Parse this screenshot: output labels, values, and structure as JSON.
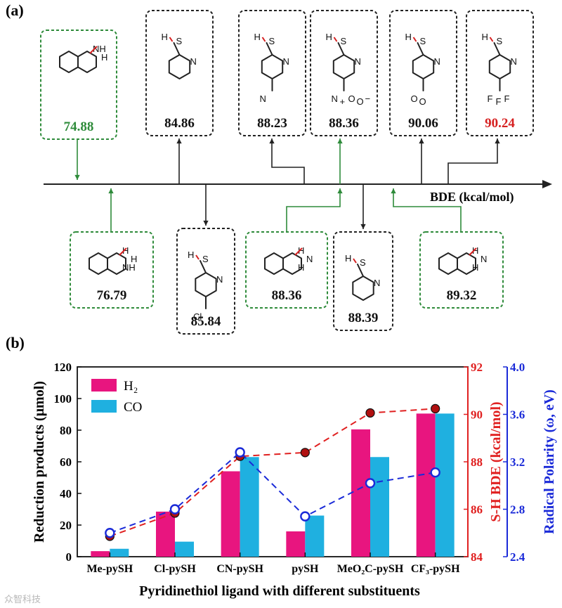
{
  "panel_a": {
    "label": "(a)",
    "axis_label": "BDE  (kcal/mol)",
    "top_boxes": [
      {
        "name": "thiq-c1",
        "value": "74.88",
        "atoms": [
          "NH",
          "H"
        ],
        "color": "#2e8b3a",
        "value_color": "#2e8b3a"
      },
      {
        "name": "me-pysh",
        "value": "84.86",
        "atoms": [
          "H",
          "S",
          "N"
        ],
        "color": "#222222",
        "value_color": "#111111"
      },
      {
        "name": "cn-pysh",
        "value": "88.23",
        "atoms": [
          "H",
          "S",
          "N",
          "N"
        ],
        "color": "#222222",
        "value_color": "#111111"
      },
      {
        "name": "no2-pysh",
        "value": "88.36",
        "atoms": [
          "H",
          "S",
          "N",
          "N",
          "+",
          "O",
          "O",
          "−"
        ],
        "color": "#222222",
        "value_color": "#111111"
      },
      {
        "name": "meo2c-pysh",
        "value": "90.06",
        "atoms": [
          "H",
          "S",
          "N",
          "O",
          "O"
        ],
        "color": "#222222",
        "value_color": "#111111"
      },
      {
        "name": "cf3-pysh",
        "value": "90.24",
        "atoms": [
          "H",
          "S",
          "N",
          "F",
          "F",
          "F"
        ],
        "color": "#222222",
        "value_color": "#d62020"
      }
    ],
    "bottom_boxes": [
      {
        "name": "thiq-c1h2",
        "value": "76.79",
        "atoms": [
          "H",
          "H",
          "NH"
        ],
        "color": "#2e8b3a",
        "value_color": "#111111"
      },
      {
        "name": "cl-pysh",
        "value": "85.84",
        "atoms": [
          "H",
          "S",
          "N",
          "Cl"
        ],
        "color": "#222222",
        "value_color": "#111111"
      },
      {
        "name": "thq-c2h2",
        "value": "88.36",
        "atoms": [
          "H",
          "N",
          "H"
        ],
        "color": "#2e8b3a",
        "value_color": "#111111"
      },
      {
        "name": "pysh",
        "value": "88.39",
        "atoms": [
          "H",
          "S",
          "N"
        ],
        "color": "#222222",
        "value_color": "#111111"
      },
      {
        "name": "indoline-c2h2",
        "value": "89.32",
        "atoms": [
          "H",
          "N",
          "H"
        ],
        "color": "#2e8b3a",
        "value_color": "#111111"
      }
    ]
  },
  "panel_b": {
    "label": "(b)"
  },
  "chart_data": {
    "type": "bar",
    "title": "",
    "categories": [
      "Me-pySH",
      "Cl-pySH",
      "CN-pySH",
      "pySH",
      "MeO₂C-pySH",
      "CF₃-pySH"
    ],
    "xlabel": "Pyridinethiol ligand with different substituents",
    "ylabel": "Reduction products (μmol)",
    "ylim": [
      0,
      120
    ],
    "yticks": [
      "0",
      "20",
      "40",
      "60",
      "80",
      "100",
      "120"
    ],
    "series": [
      {
        "name": "H₂",
        "type": "bar",
        "axis": "left",
        "color": "#e8157f",
        "values": [
          3.5,
          28.5,
          54,
          16,
          80.5,
          90.5
        ]
      },
      {
        "name": "CO",
        "type": "bar",
        "axis": "left",
        "color": "#1fb0e0",
        "values": [
          5,
          9.5,
          63,
          26,
          63,
          90.5
        ]
      },
      {
        "name": "S-H BDE",
        "type": "line",
        "axis": "right1",
        "color": "#e02020",
        "values": [
          84.86,
          85.84,
          88.23,
          88.39,
          90.06,
          90.24
        ]
      },
      {
        "name": "Radical Polarity",
        "type": "line",
        "axis": "right2",
        "color": "#1a2ad8",
        "values": [
          2.6,
          2.8,
          3.28,
          2.74,
          3.02,
          3.11
        ]
      }
    ],
    "y2label": "S-H BDE (kcal/mol)",
    "y2lim": [
      84,
      92
    ],
    "y2ticks": [
      "84",
      "86",
      "88",
      "90",
      "92"
    ],
    "y3label": "Radical Polarity (ω, eV)",
    "y3lim": [
      2.4,
      4.0
    ],
    "y3ticks": [
      "2.4",
      "2.8",
      "3.2",
      "3.6",
      "4.0"
    ],
    "legend": "top-left"
  },
  "watermark": "众智科技"
}
